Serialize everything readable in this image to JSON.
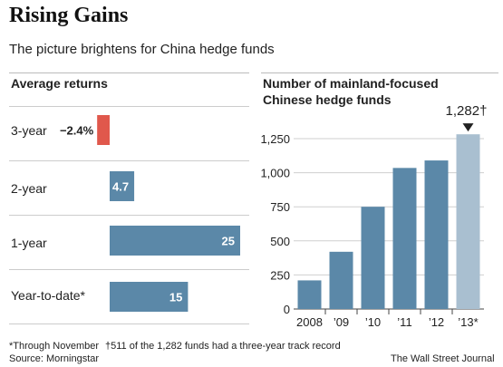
{
  "header": {
    "title": "Rising Gains",
    "subtitle": "The picture brightens for China hedge funds"
  },
  "left_panel": {
    "title": "Average returns"
  },
  "right_panel": {
    "title_line1": "Number of mainland-focused",
    "title_line2": "Chinese hedge funds",
    "callout": "1,282"
  },
  "footer": {
    "note_ytd": "*Through November",
    "note_dagger": "†511 of the 1,282 funds had a three-year track record",
    "source": "Source: Morningstar",
    "credit": "The Wall Street Journal"
  },
  "colors": {
    "positive": "#5b88a8",
    "negative": "#e0584c",
    "partial_year": "#a9bfd0"
  },
  "chart_data": [
    {
      "type": "bar",
      "orientation": "horizontal",
      "title": "Average returns",
      "categories": [
        "3-year",
        "2-year",
        "1-year",
        "Year-to-date*"
      ],
      "values": [
        -2.4,
        4.7,
        25,
        15
      ],
      "value_labels": [
        "−2.4%",
        "4.7",
        "25",
        "15"
      ],
      "xlim": [
        -2.4,
        25
      ]
    },
    {
      "type": "bar",
      "title": "Number of mainland-focused Chinese hedge funds",
      "categories": [
        "2008",
        "’09",
        "’10",
        "’11",
        "’12",
        "’13*"
      ],
      "values": [
        210,
        420,
        750,
        1035,
        1090,
        1282
      ],
      "ylim": [
        0,
        1250
      ],
      "yticks": [
        0,
        250,
        500,
        750,
        1000,
        1250
      ],
      "ytick_labels": [
        "0",
        "250",
        "500",
        "750",
        "1,000",
        "1,250"
      ],
      "highlight_last": true,
      "annotation": "1,282†"
    }
  ]
}
